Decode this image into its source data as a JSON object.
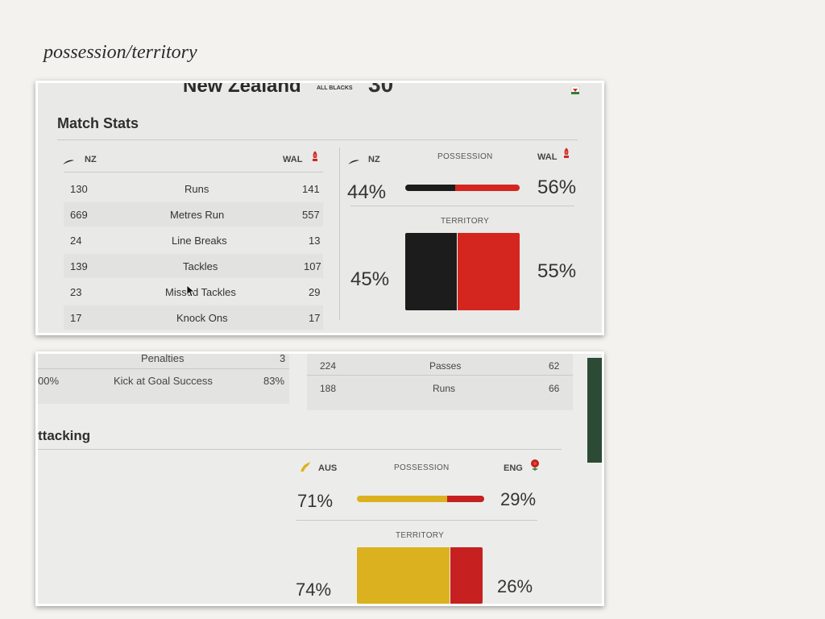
{
  "slide": {
    "title": "possession/territory"
  },
  "colors": {
    "nz": "#1c1c1c",
    "wal": "#d4261f",
    "aus": "#dcb11f",
    "eng": "#c62020"
  },
  "top": {
    "cut_header": {
      "team_name": "New Zealand",
      "tag": "ALL BLACKS",
      "score": "30"
    },
    "section_title": "Match Stats",
    "table": {
      "home": "NZ",
      "away": "WAL",
      "rows": [
        {
          "home": "130",
          "label": "Runs",
          "away": "141"
        },
        {
          "home": "669",
          "label": "Metres Run",
          "away": "557"
        },
        {
          "home": "24",
          "label": "Line Breaks",
          "away": "13"
        },
        {
          "home": "139",
          "label": "Tackles",
          "away": "107"
        },
        {
          "home": "23",
          "label": "Missed Tackles",
          "away": "29"
        },
        {
          "home": "17",
          "label": "Knock Ons",
          "away": "17"
        }
      ]
    },
    "possession": {
      "home": "NZ",
      "away": "WAL",
      "label": "POSSESSION",
      "home_pct": "44%",
      "away_pct": "56%",
      "home_value": 44
    },
    "territory": {
      "label": "TERRITORY",
      "home_pct": "45%",
      "away_pct": "55%",
      "home_value": 45
    }
  },
  "bottom": {
    "left_rows": [
      {
        "left": "",
        "label": "Penalties",
        "right": "3"
      },
      {
        "left": "00%",
        "label": "Kick at Goal Success",
        "right": "83%"
      }
    ],
    "right_rows": [
      {
        "left": "224",
        "label": "Passes",
        "right": "62"
      },
      {
        "left": "188",
        "label": "Runs",
        "right": "66"
      }
    ],
    "section_title": "ttacking",
    "possession": {
      "home": "AUS",
      "away": "ENG",
      "label": "POSSESSION",
      "home_pct": "71%",
      "away_pct": "29%",
      "home_value": 71
    },
    "territory": {
      "label": "TERRITORY",
      "home_pct": "74%",
      "away_pct": "26%",
      "home_value": 74
    }
  }
}
